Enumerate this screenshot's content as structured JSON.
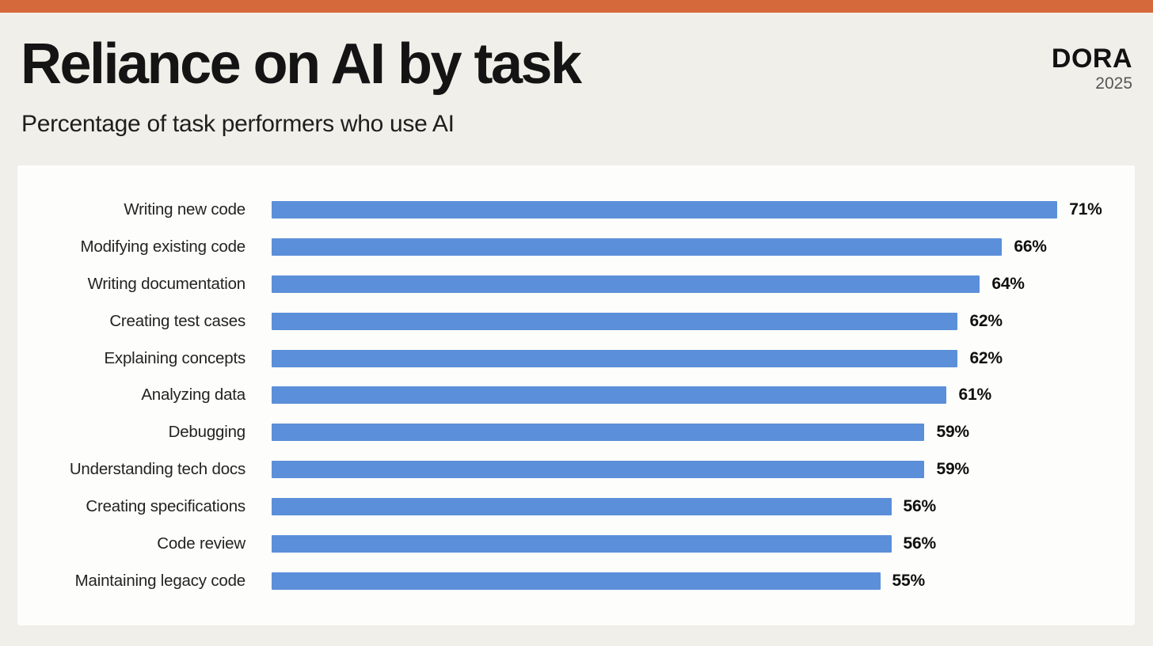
{
  "page": {
    "accent_bar_color": "#D5693C",
    "background_color": "#F0EFE9",
    "panel_color": "#FDFDFB"
  },
  "header": {
    "title": "Reliance on AI by task",
    "subtitle": "Percentage of task performers who use AI"
  },
  "logo": {
    "brand": "DORA",
    "year": "2025"
  },
  "chart_data": {
    "type": "bar",
    "orientation": "horizontal",
    "title": "Reliance on AI by task",
    "subtitle": "Percentage of task performers who use AI",
    "categories": [
      "Writing new code",
      "Modifying existing code",
      "Writing documentation",
      "Creating test cases",
      "Explaining concepts",
      "Analyzing data",
      "Debugging",
      "Understanding tech docs",
      "Creating specifications",
      "Code review",
      "Maintaining legacy code"
    ],
    "values": [
      71,
      66,
      64,
      62,
      62,
      61,
      59,
      59,
      56,
      56,
      55
    ],
    "value_suffix": "%",
    "bar_color": "#5B8FD9",
    "xlim": [
      0,
      78
    ],
    "grid": false,
    "legend": false,
    "value_labels_position": "end-of-bar"
  }
}
